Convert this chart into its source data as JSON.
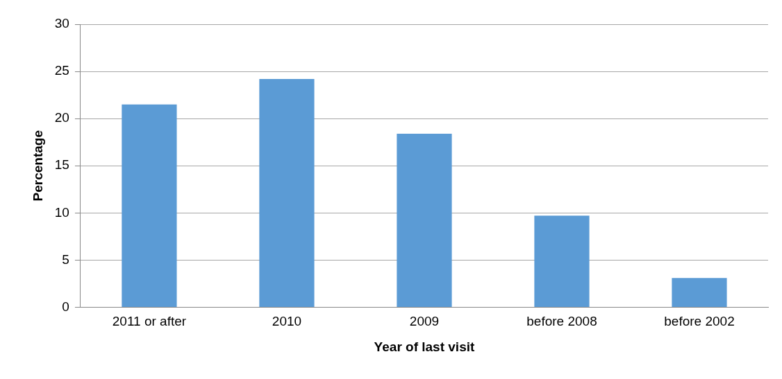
{
  "chart_data": {
    "type": "bar",
    "xlabel": "Year of last visit",
    "ylabel": "Percentage",
    "categories": [
      "2011 or after",
      "2010",
      "2009",
      "before 2008",
      "before 2002"
    ],
    "values": [
      21.5,
      24.2,
      18.4,
      9.7,
      3.1
    ],
    "color": "#5b9bd5",
    "ylim": [
      0,
      30
    ],
    "yticks": [
      0,
      5,
      10,
      15,
      20,
      25,
      30
    ],
    "grid": "y",
    "legend": false
  }
}
